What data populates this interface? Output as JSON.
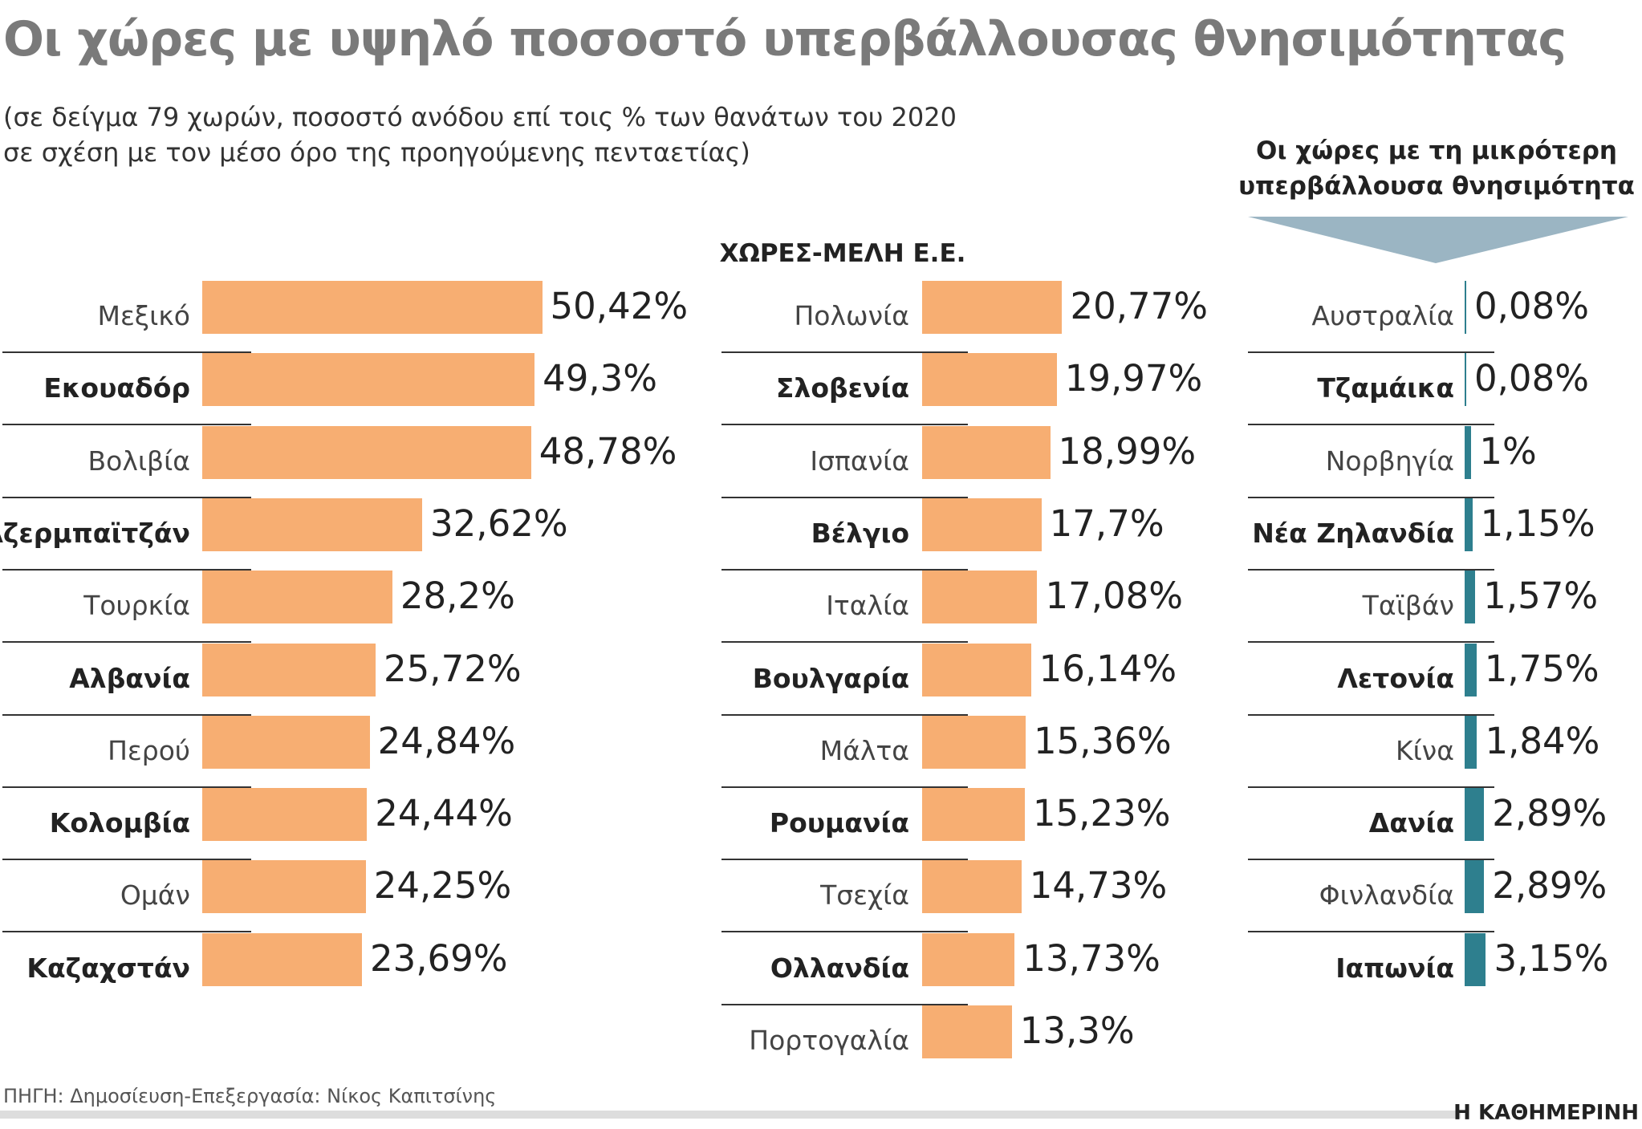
{
  "header": {
    "title": "Οι χώρες με υψηλό ποσοστό υπερβάλλουσας θνησιμότητας",
    "subtitle_line1": "(σε δείγμα 79 χωρών, ποσοστό ανόδου επί τοις % των θανάτων του 2020",
    "subtitle_line2": "σε σχέση με τον μέσο όρο της προηγούμενης πενταετίας)"
  },
  "chart_data": [
    {
      "type": "bar",
      "orientation": "horizontal",
      "title": "",
      "color": "#f7ae72",
      "categories": [
        "Μεξικό",
        "Εκουαδόρ",
        "Βολιβία",
        "Αζερμπαϊτζάν",
        "Τουρκία",
        "Αλβανία",
        "Περού",
        "Κολομβία",
        "Ομάν",
        "Καζαχστάν"
      ],
      "values": [
        50.42,
        49.3,
        48.78,
        32.62,
        28.2,
        25.72,
        24.84,
        24.44,
        24.25,
        23.69
      ],
      "unit": "%"
    },
    {
      "type": "bar",
      "orientation": "horizontal",
      "title": "ΧΩΡΕΣ-ΜΕΛΗ Ε.Ε.",
      "color": "#f7ae72",
      "categories": [
        "Πολωνία",
        "Σλοβενία",
        "Ισπανία",
        "Βέλγιο",
        "Ιταλία",
        "Βουλγαρία",
        "Μάλτα",
        "Ρουμανία",
        "Τσεχία",
        "Ολλανδία",
        "Πορτογαλία"
      ],
      "values": [
        20.77,
        19.97,
        18.99,
        17.7,
        17.08,
        16.14,
        15.36,
        15.23,
        14.73,
        13.73,
        13.3
      ],
      "unit": "%"
    },
    {
      "type": "bar",
      "orientation": "horizontal",
      "title": "Οι χώρες με τη μικρότερη υπερβάλλουσα θνησιμότητα",
      "color": "#2e7f8e",
      "categories": [
        "Αυστραλία",
        "Τζαμάικα",
        "Νορβηγία",
        "Νέα Ζηλανδία",
        "Ταϊβάν",
        "Λετονία",
        "Κίνα",
        "Δανία",
        "Φινλανδία",
        "Ιαπωνία"
      ],
      "values": [
        0.08,
        0.08,
        1,
        1.15,
        1.57,
        1.75,
        1.84,
        2.89,
        2.89,
        3.15
      ],
      "unit": "%"
    }
  ],
  "right_header": {
    "line1": "Οι χώρες με τη μικρότερη",
    "line2": "υπερβάλλουσα θνησιμότητα",
    "arrow_color": "#9bb5c3"
  },
  "footer": {
    "source": "ΠΗΓΗ: Δημοσίευση-Επεξεργασία: Νίκος Καπιτσίνης",
    "brand": "Η ΚΑΘΗΜΕΡΙΝΗ"
  }
}
